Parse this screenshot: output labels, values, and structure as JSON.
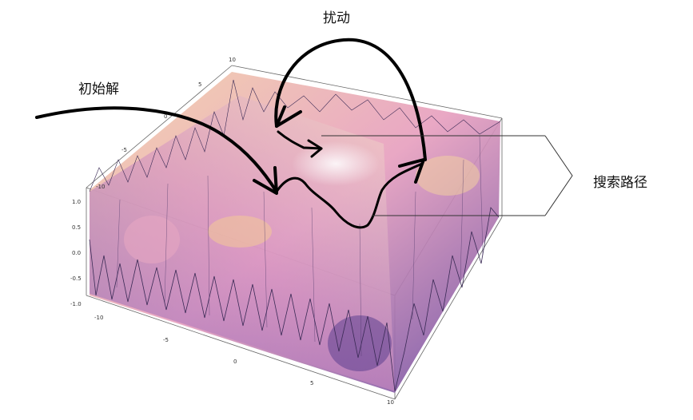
{
  "labels": {
    "initial": "初始解",
    "perturb": "扰动",
    "search_path": "搜索路径"
  },
  "axes": {
    "z_ticks": [
      "1.0",
      "0.5",
      "0.0",
      "-0.5",
      "-1.0"
    ],
    "x_ticks": [
      "-10",
      "-5",
      "0",
      "5",
      "10"
    ],
    "y_ticks": [
      "-10",
      "-5",
      "0",
      "5",
      "10"
    ],
    "top_tick": "10"
  },
  "colors": {
    "surface_purple": "#6a4aa0",
    "surface_pink": "#e9a0b8",
    "surface_peach": "#f2c79a",
    "surface_light": "#f5e4f0",
    "annotation_stroke": "#000000",
    "box_stroke": "#555555"
  }
}
